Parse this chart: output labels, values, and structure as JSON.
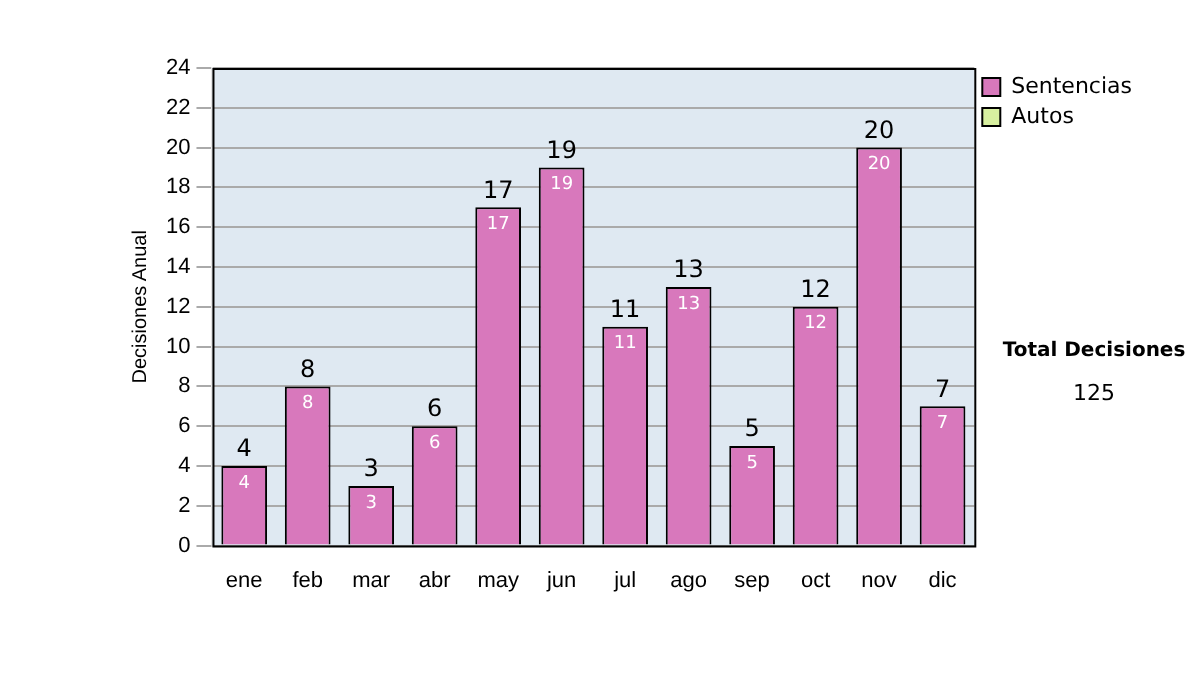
{
  "chart_data": {
    "type": "bar",
    "ylabel": "Decisiones Anual",
    "categories": [
      "ene",
      "feb",
      "mar",
      "abr",
      "may",
      "jun",
      "jul",
      "ago",
      "sep",
      "oct",
      "nov",
      "dic"
    ],
    "series": [
      {
        "name": "Sentencias",
        "color": "#d878bc",
        "values": [
          4,
          8,
          3,
          6,
          17,
          19,
          11,
          13,
          5,
          12,
          20,
          7
        ]
      },
      {
        "name": "Autos",
        "color": "#d8f0a0",
        "values": [
          null,
          null,
          null,
          null,
          null,
          null,
          null,
          null,
          null,
          null,
          null,
          null
        ]
      }
    ],
    "ylim": [
      0,
      24
    ],
    "yticks": [
      0,
      2,
      4,
      6,
      8,
      10,
      12,
      14,
      16,
      18,
      20,
      22,
      24
    ],
    "grid": "y",
    "legend": "right",
    "data_labels": true,
    "annotations": [
      "Total Decisiones",
      "125",
      {
        "text": "4",
        "x": "ene",
        "y": 4
      },
      {
        "text": "8",
        "x": "feb",
        "y": 8
      },
      {
        "text": "3",
        "x": "mar",
        "y": 3
      },
      {
        "text": "6",
        "x": "abr",
        "y": 6
      },
      {
        "text": "17",
        "x": "may",
        "y": 17
      },
      {
        "text": "19",
        "x": "jun",
        "y": 19
      },
      {
        "text": "11",
        "x": "jul",
        "y": 11
      },
      {
        "text": "13",
        "x": "ago",
        "y": 13
      },
      {
        "text": "5",
        "x": "sep",
        "y": 5
      },
      {
        "text": "12",
        "x": "oct",
        "y": 12
      },
      {
        "text": "20",
        "x": "nov",
        "y": 20
      },
      {
        "text": "7",
        "x": "dic",
        "y": 7
      }
    ]
  }
}
